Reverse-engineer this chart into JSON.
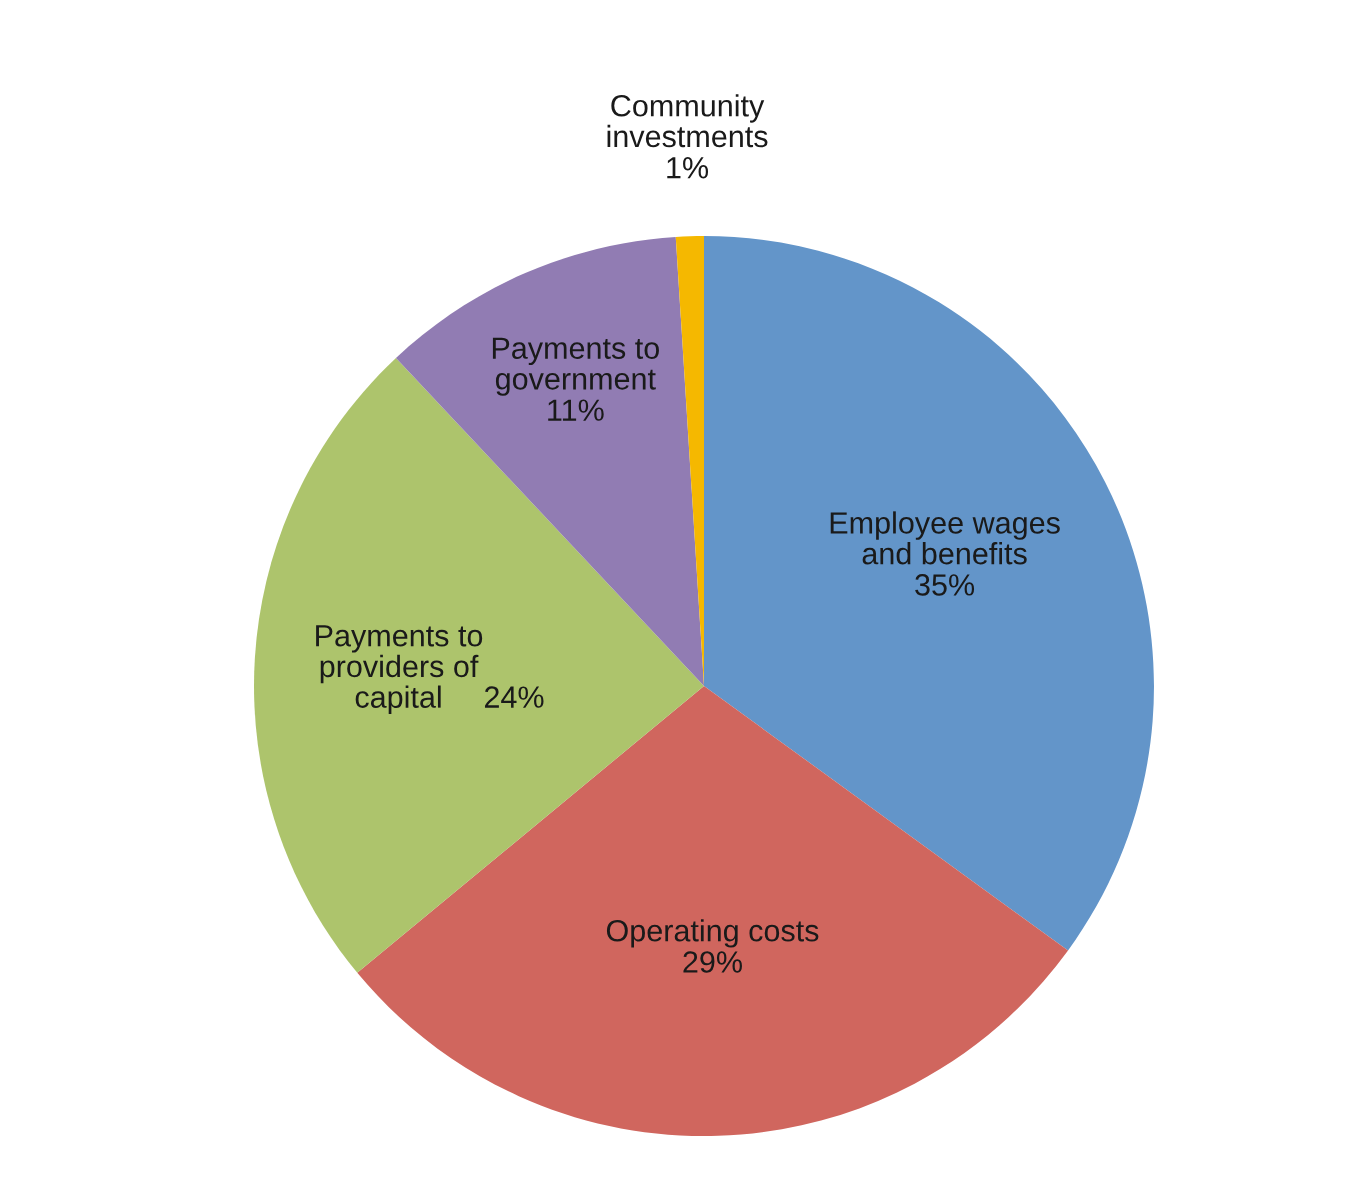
{
  "chart_data": {
    "type": "pie",
    "categories": [
      "Employee wages\nand benefits\n",
      "Operating costs\n",
      "Payments to\nproviders of\ncapital",
      "Payments to\ngovernment\n",
      "Community\ninvestments\n"
    ],
    "values": [
      35,
      29,
      24,
      11,
      1
    ],
    "value_labels": [
      "35%",
      "29%",
      "24%",
      "11%",
      "1%"
    ],
    "colors": [
      "#6395c9",
      "#d0665e",
      "#adc46c",
      "#917cb3",
      "#f5b800"
    ]
  }
}
